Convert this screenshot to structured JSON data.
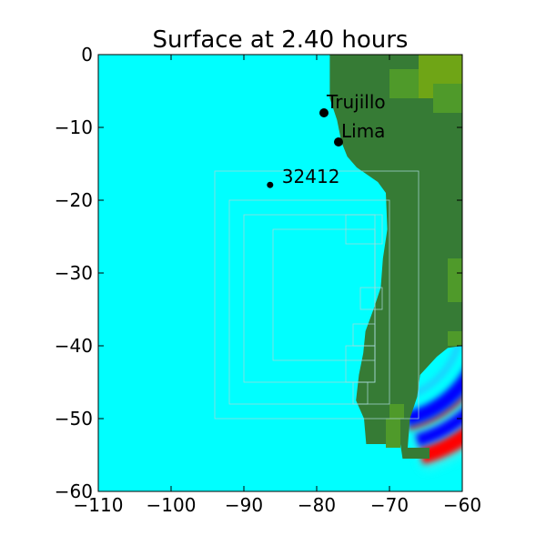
{
  "chart_data": {
    "type": "heatmap",
    "title": "Surface at 2.40 hours",
    "xlabel": "",
    "ylabel": "",
    "xlim": [
      -110,
      -60
    ],
    "ylim": [
      -60,
      0
    ],
    "xticks": [
      -110,
      -100,
      -90,
      -80,
      -70,
      -60
    ],
    "yticks": [
      0,
      -10,
      -20,
      -30,
      -40,
      -50,
      -60
    ],
    "xtick_labels": [
      "−110",
      "−100",
      "−90",
      "−80",
      "−70",
      "−60"
    ],
    "ytick_labels": [
      "0",
      "−10",
      "−20",
      "−30",
      "−40",
      "−50",
      "−60"
    ],
    "grid": false,
    "colors": {
      "ocean": "#00ffff",
      "land": "#367b35",
      "highland": "#4f9a2a",
      "peak": "#6fa516",
      "wave_high": "#ff0000",
      "wave_low": "#0000ff",
      "grid_patch": "#a8d8d8"
    },
    "points": [
      {
        "name": "Trujillo",
        "x": -79.0,
        "y": -8.0
      },
      {
        "name": "Lima",
        "x": -77.0,
        "y": -12.0
      },
      {
        "name": "32412",
        "x": -86.4,
        "y": -17.9
      }
    ],
    "wavefront": {
      "center": [
        -70.5,
        -37.0
      ],
      "outer_radius_deg": 18.8,
      "inner_radius_deg": 14.6
    }
  }
}
